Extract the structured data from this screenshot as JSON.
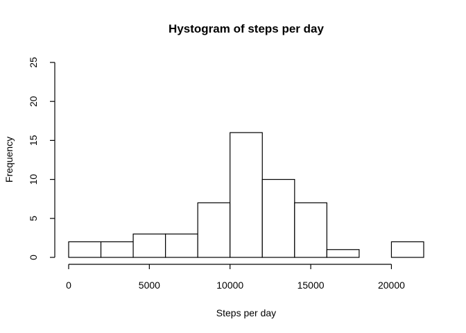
{
  "chart_data": {
    "type": "bar",
    "subtype": "histogram",
    "title": "Hystogram of steps per day",
    "xlabel": "Steps per day",
    "ylabel": "Frequency",
    "bins": [
      {
        "from": 0,
        "to": 2000,
        "count": 2
      },
      {
        "from": 2000,
        "to": 4000,
        "count": 2
      },
      {
        "from": 4000,
        "to": 6000,
        "count": 3
      },
      {
        "from": 6000,
        "to": 8000,
        "count": 3
      },
      {
        "from": 8000,
        "to": 10000,
        "count": 7
      },
      {
        "from": 10000,
        "to": 12000,
        "count": 16
      },
      {
        "from": 12000,
        "to": 14000,
        "count": 10
      },
      {
        "from": 14000,
        "to": 16000,
        "count": 7
      },
      {
        "from": 16000,
        "to": 18000,
        "count": 1
      },
      {
        "from": 18000,
        "to": 20000,
        "count": 0
      },
      {
        "from": 20000,
        "to": 22000,
        "count": 2
      }
    ],
    "xlim": [
      0,
      22000
    ],
    "ylim": [
      0,
      25
    ],
    "xticks": [
      0,
      5000,
      10000,
      15000,
      20000
    ],
    "xtick_labels": [
      "0",
      "5000",
      "10000",
      "15000",
      "20000"
    ],
    "yticks": [
      0,
      5,
      10,
      15,
      20,
      25
    ],
    "ytick_labels": [
      "0",
      "5",
      "10",
      "15",
      "20",
      "25"
    ],
    "grid": false,
    "legend": "none",
    "colors": {
      "bar_fill": "#ffffff",
      "bar_stroke": "#000000",
      "background": "#ffffff"
    }
  }
}
